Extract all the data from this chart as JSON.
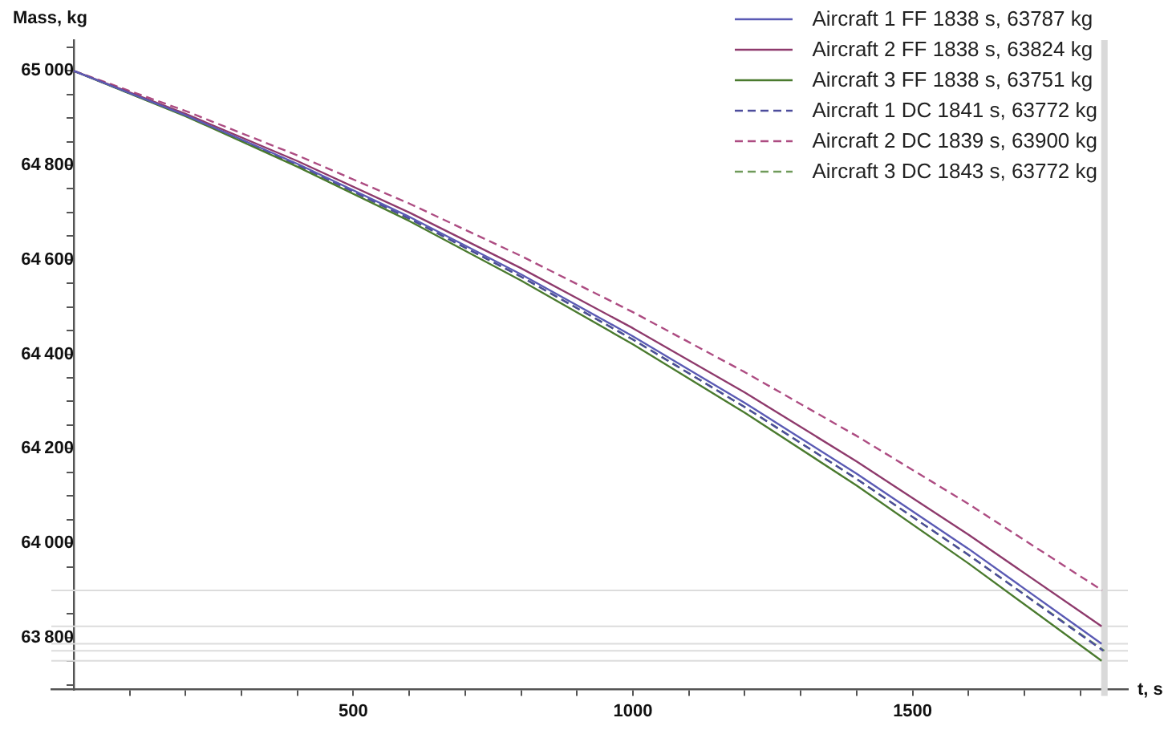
{
  "chart_data": {
    "type": "line",
    "xlabel": "t, s",
    "ylabel": "Mass, kg",
    "xlim": [
      -40,
      1885
    ],
    "ylim": [
      63690,
      65065
    ],
    "xticks": [
      {
        "value": 100,
        "label": null
      },
      {
        "value": 200,
        "label": null
      },
      {
        "value": 300,
        "label": null
      },
      {
        "value": 400,
        "label": null
      },
      500,
      {
        "value": 600,
        "label": null
      },
      {
        "value": 700,
        "label": null
      },
      {
        "value": 800,
        "label": null
      },
      {
        "value": 900,
        "label": null
      },
      1000,
      {
        "value": 1100,
        "label": null
      },
      {
        "value": 1200,
        "label": null
      },
      {
        "value": 1300,
        "label": null
      },
      {
        "value": 1400,
        "label": null
      },
      1500,
      {
        "value": 1600,
        "label": null
      },
      {
        "value": 1700,
        "label": null
      },
      {
        "value": 1800,
        "label": null
      }
    ],
    "yticks": [
      {
        "value": 63700,
        "label": null
      },
      {
        "value": 63750,
        "label": null
      },
      63800,
      {
        "value": 63850,
        "label": null
      },
      {
        "value": 63900,
        "label": null
      },
      {
        "value": 63950,
        "label": null
      },
      64000,
      {
        "value": 64050,
        "label": null
      },
      {
        "value": 64100,
        "label": null
      },
      {
        "value": 64150,
        "label": null
      },
      64200,
      {
        "value": 64250,
        "label": null
      },
      {
        "value": 64300,
        "label": null
      },
      {
        "value": 64350,
        "label": null
      },
      64400,
      {
        "value": 64450,
        "label": null
      },
      {
        "value": 64500,
        "label": null
      },
      {
        "value": 64550,
        "label": null
      },
      64600,
      {
        "value": 64650,
        "label": null
      },
      {
        "value": 64700,
        "label": null
      },
      {
        "value": 64750,
        "label": null
      },
      64800,
      {
        "value": 64850,
        "label": null
      },
      {
        "value": 64900,
        "label": null
      },
      {
        "value": 64950,
        "label": null
      },
      65000,
      {
        "value": 65050,
        "label": null
      }
    ],
    "grid": false,
    "legend": "top right",
    "marker": "none",
    "ref_lines": [
      {
        "axis": "y",
        "value": 63900,
        "color": "#dcdcdc"
      },
      {
        "axis": "y",
        "value": 63824,
        "color": "#dcdcdc"
      },
      {
        "axis": "y",
        "value": 63787,
        "color": "#dcdcdc"
      },
      {
        "axis": "y",
        "value": 63772,
        "color": "#dcdcdc"
      },
      {
        "axis": "y",
        "value": 63751,
        "color": "#dcdcdc"
      },
      {
        "axis": "x",
        "value": 1843,
        "color": "#d9d9d9"
      }
    ],
    "series": [
      {
        "name": "Aircraft 1 FF 1838 s, 63787 kg",
        "color": "#5a5ab4",
        "line_style": "solid",
        "x": [
          0,
          200,
          400,
          600,
          800,
          1000,
          1200,
          1400,
          1600,
          1838
        ],
        "values": [
          65000,
          64906,
          64803,
          64691,
          64569,
          64438,
          64297,
          64147,
          63988,
          63787
        ]
      },
      {
        "name": "Aircraft 2 FF 1838 s, 63824 kg",
        "color": "#8e3a6c",
        "line_style": "solid",
        "x": [
          0,
          200,
          400,
          600,
          800,
          1000,
          1200,
          1400,
          1600,
          1838
        ],
        "values": [
          65000,
          64909,
          64809,
          64700,
          64582,
          64455,
          64319,
          64173,
          64018,
          63824
        ]
      },
      {
        "name": "Aircraft 3 FF 1838 s, 63751 kg",
        "color": "#4a7a2e",
        "line_style": "solid",
        "x": [
          0,
          200,
          400,
          600,
          800,
          1000,
          1200,
          1400,
          1600,
          1838
        ],
        "values": [
          65000,
          64904,
          64797,
          64682,
          64556,
          64421,
          64276,
          64122,
          63957,
          63751
        ]
      },
      {
        "name": "Aircraft 1 DC 1841 s, 63772 kg",
        "color": "#4c4c9c",
        "line_style": "dashed",
        "x": [
          0,
          200,
          400,
          600,
          800,
          1000,
          1200,
          1400,
          1600,
          1841
        ],
        "values": [
          65000,
          64905,
          64801,
          64687,
          64564,
          64431,
          64288,
          64136,
          63975,
          63772
        ]
      },
      {
        "name": "Aircraft 2 DC 1839 s, 63900 kg",
        "color": "#ad4c82",
        "line_style": "dashed",
        "x": [
          0,
          200,
          400,
          600,
          800,
          1000,
          1200,
          1400,
          1600,
          1839
        ],
        "values": [
          65000,
          64915,
          64821,
          64719,
          64608,
          64489,
          64362,
          64227,
          64083,
          63900
        ]
      },
      {
        "name": "Aircraft 3 DC 1843 s, 63772 kg",
        "color": "#6f9a5a",
        "line_style": "dashed",
        "x": [
          0,
          200,
          400,
          600,
          800,
          1000,
          1200,
          1400,
          1600,
          1843
        ],
        "values": [
          65000,
          64905,
          64801,
          64687,
          64564,
          64431,
          64288,
          64136,
          63975,
          63772
        ]
      }
    ]
  }
}
